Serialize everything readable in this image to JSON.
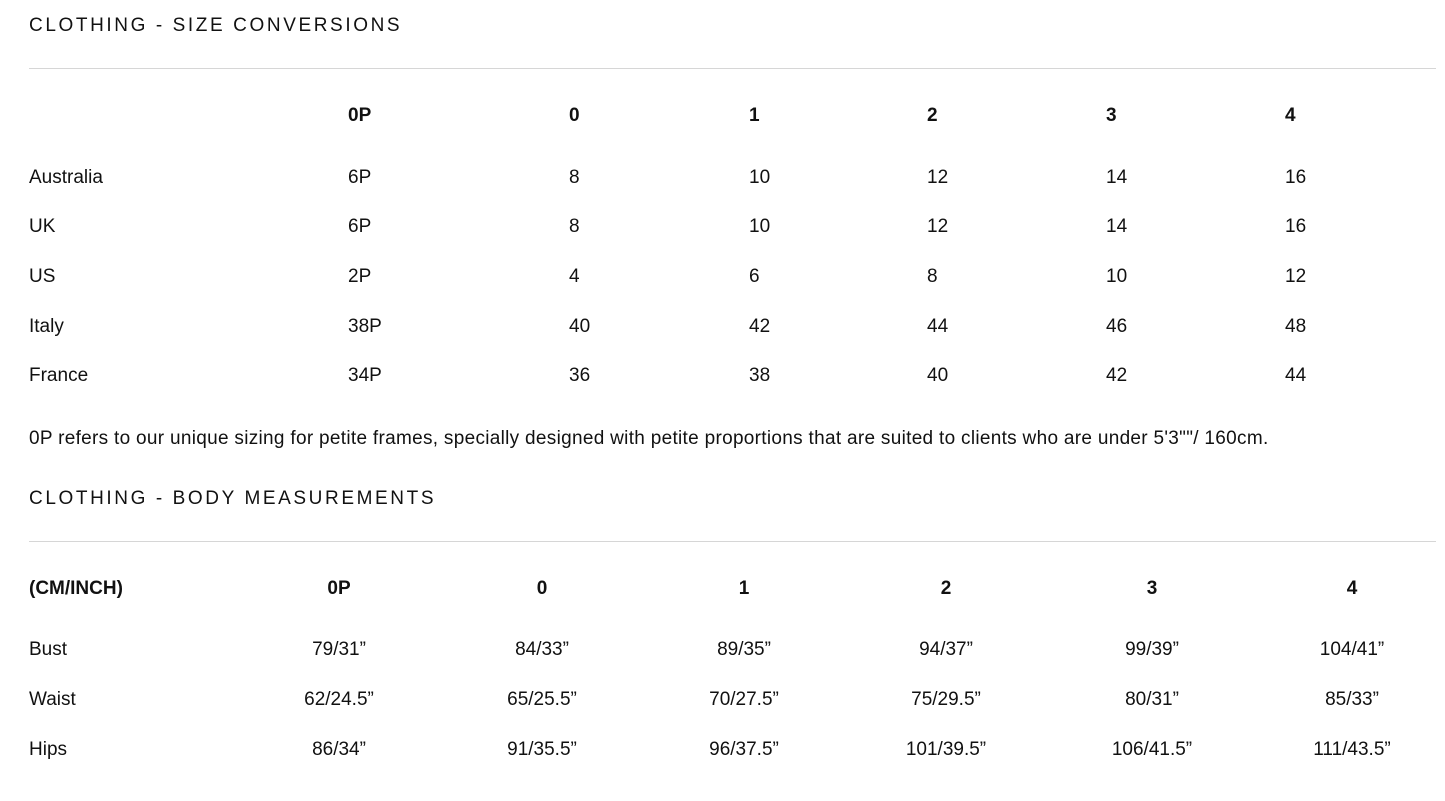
{
  "conversions": {
    "title": "CLOTHING - SIZE CONVERSIONS",
    "headers": [
      "",
      "0P",
      "0",
      "1",
      "2",
      "3",
      "4"
    ],
    "rows": [
      [
        "Australia",
        "6P",
        "8",
        "10",
        "12",
        "14",
        "16"
      ],
      [
        "UK",
        "6P",
        "8",
        "10",
        "12",
        "14",
        "16"
      ],
      [
        "US",
        "2P",
        "4",
        "6",
        "8",
        "10",
        "12"
      ],
      [
        "Italy",
        "38P",
        "40",
        "42",
        "44",
        "46",
        "48"
      ],
      [
        "France",
        "34P",
        "36",
        "38",
        "40",
        "42",
        "44"
      ]
    ],
    "note": "0P refers to our unique sizing for petite frames, specially designed with petite proportions that are suited to clients who are under 5'3\"\"/ 160cm."
  },
  "measurements": {
    "title": "CLOTHING - BODY MEASUREMENTS",
    "headers": [
      "(CM/INCH)",
      "0P",
      "0",
      "1",
      "2",
      "3",
      "4"
    ],
    "rows": [
      [
        "Bust",
        "79/31”",
        "84/33”",
        "89/35”",
        "94/37”",
        "99/39”",
        "104/41”"
      ],
      [
        "Waist",
        "62/24.5”",
        "65/25.5”",
        "70/27.5”",
        "75/29.5”",
        "80/31”",
        "85/33”"
      ],
      [
        "Hips",
        "86/34”",
        "91/35.5”",
        "96/37.5”",
        "101/39.5”",
        "106/41.5”",
        "111/43.5”"
      ]
    ]
  }
}
